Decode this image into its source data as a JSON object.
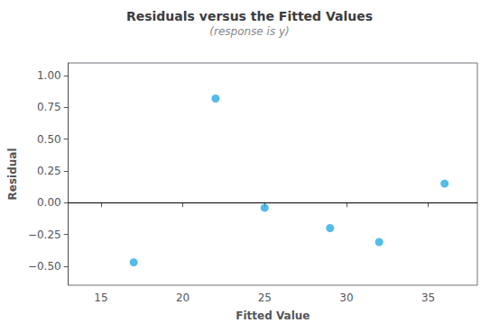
{
  "chart_data": {
    "type": "scatter",
    "title": "Residuals versus the Fitted Values",
    "subtitle": "(response is y)",
    "xlabel": "Fitted Value",
    "ylabel": "Residual",
    "x": [
      17.0,
      22.0,
      25.0,
      29.0,
      32.0,
      36.0
    ],
    "values": [
      -0.47,
      0.82,
      -0.04,
      -0.2,
      -0.31,
      0.15
    ],
    "color": "#29abe2",
    "xlim": [
      13,
      38
    ],
    "ylim": [
      -0.65,
      1.1
    ],
    "xticks": [
      15,
      20,
      25,
      30,
      35
    ],
    "yticks": [
      {
        "value": -0.5,
        "label": "−0.50"
      },
      {
        "value": -0.25,
        "label": "−0.25"
      },
      {
        "value": 0.0,
        "label": "0.00"
      },
      0.25,
      {
        "value": 0.5,
        "label": "0.50"
      },
      0.75,
      {
        "value": 1.0,
        "label": "1.00"
      }
    ],
    "hline": {
      "y": 0.0,
      "color": "#000000"
    },
    "grid": false
  }
}
